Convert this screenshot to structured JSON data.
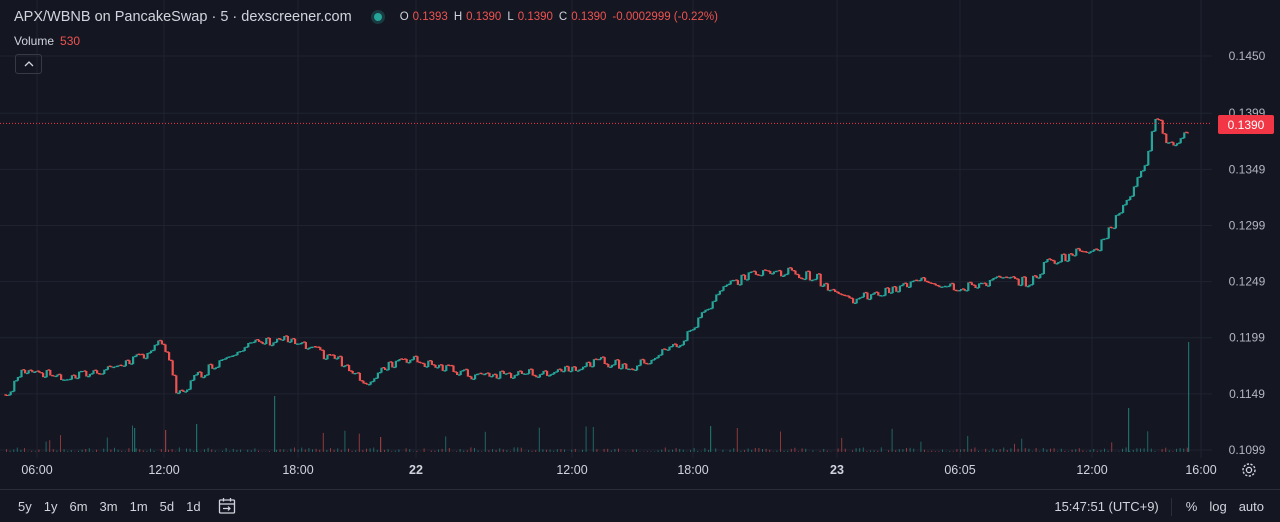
{
  "header": {
    "title": "APX/WBNB on PancakeSwap · 5 · dexscreener.com",
    "status_color": "#26a69a",
    "ohlc": [
      {
        "key": "O",
        "value": "0.1393"
      },
      {
        "key": "H",
        "value": "0.1390"
      },
      {
        "key": "L",
        "value": "0.1390"
      },
      {
        "key": "C",
        "value": "0.1390"
      }
    ],
    "change": "-0.0002999 (-0.22%)"
  },
  "volume": {
    "label": "Volume",
    "value": "530"
  },
  "last_price": "0.1390",
  "colors": {
    "up": "#26a69a",
    "down": "#ef5350",
    "price_line": "#f23645",
    "background": "#141722",
    "grid": "#1f2330"
  },
  "icons": {
    "collapse": "chevron-up-icon",
    "settings": "gear-icon",
    "go_to_date": "calendar-range-icon"
  },
  "time_ranges": [
    "5y",
    "1y",
    "6m",
    "3m",
    "1m",
    "5d",
    "1d"
  ],
  "footer": {
    "clock": "15:47:51 (UTC+9)",
    "percent": "%",
    "log": "log",
    "auto": "auto"
  },
  "chart_data": {
    "type": "candlestick",
    "interval": "5m",
    "y_ticks": [
      "0.1450",
      "0.1399",
      "0.1349",
      "0.1299",
      "0.1249",
      "0.1199",
      "0.1149",
      "0.1099"
    ],
    "x_ticks": [
      "06:00",
      "12:00",
      "18:00",
      "22",
      "12:00",
      "18:00",
      "23",
      "06:05",
      "12:00",
      "16:00"
    ],
    "ylim": [
      0.1099,
      0.145
    ],
    "grid": true,
    "last_price": 0.139,
    "price_path": [
      {
        "t": "04:00",
        "p": 0.1148
      },
      {
        "t": "05:00",
        "p": 0.117
      },
      {
        "t": "07:30",
        "p": 0.1163
      },
      {
        "t": "10:00",
        "p": 0.1178
      },
      {
        "t": "12:00",
        "p": 0.1195
      },
      {
        "t": "12:30",
        "p": 0.1147
      },
      {
        "t": "13:30",
        "p": 0.1165
      },
      {
        "t": "15:00",
        "p": 0.119
      },
      {
        "t": "18:00",
        "p": 0.1198
      },
      {
        "t": "21:00",
        "p": 0.1178
      },
      {
        "t": "21:40",
        "p": 0.116
      },
      {
        "t": "22:00",
        "p": 0.1182
      },
      {
        "t": "03:00",
        "p": 0.1165
      },
      {
        "t": "07:00",
        "p": 0.1168
      },
      {
        "t": "09:00",
        "p": 0.1178
      },
      {
        "t": "11:00",
        "p": 0.1172
      },
      {
        "t": "13:00",
        "p": 0.1196
      },
      {
        "t": "15:00",
        "p": 0.1244
      },
      {
        "t": "16:00",
        "p": 0.126
      },
      {
        "t": "18:00",
        "p": 0.1254
      },
      {
        "t": "20:00",
        "p": 0.1232
      },
      {
        "t": "22:00",
        "p": 0.1238
      },
      {
        "t": "01:00",
        "p": 0.125
      },
      {
        "t": "03:00",
        "p": 0.1244
      },
      {
        "t": "05:00",
        "p": 0.1251
      },
      {
        "t": "08:00",
        "p": 0.1248
      },
      {
        "t": "09:00",
        "p": 0.1266
      },
      {
        "t": "11:00",
        "p": 0.1282
      },
      {
        "t": "13:00",
        "p": 0.1345
      },
      {
        "t": "14:00",
        "p": 0.1395
      },
      {
        "t": "14:30",
        "p": 0.1372
      },
      {
        "t": "15:30",
        "p": 0.1375
      },
      {
        "t": "16:00",
        "p": 0.139
      }
    ]
  }
}
